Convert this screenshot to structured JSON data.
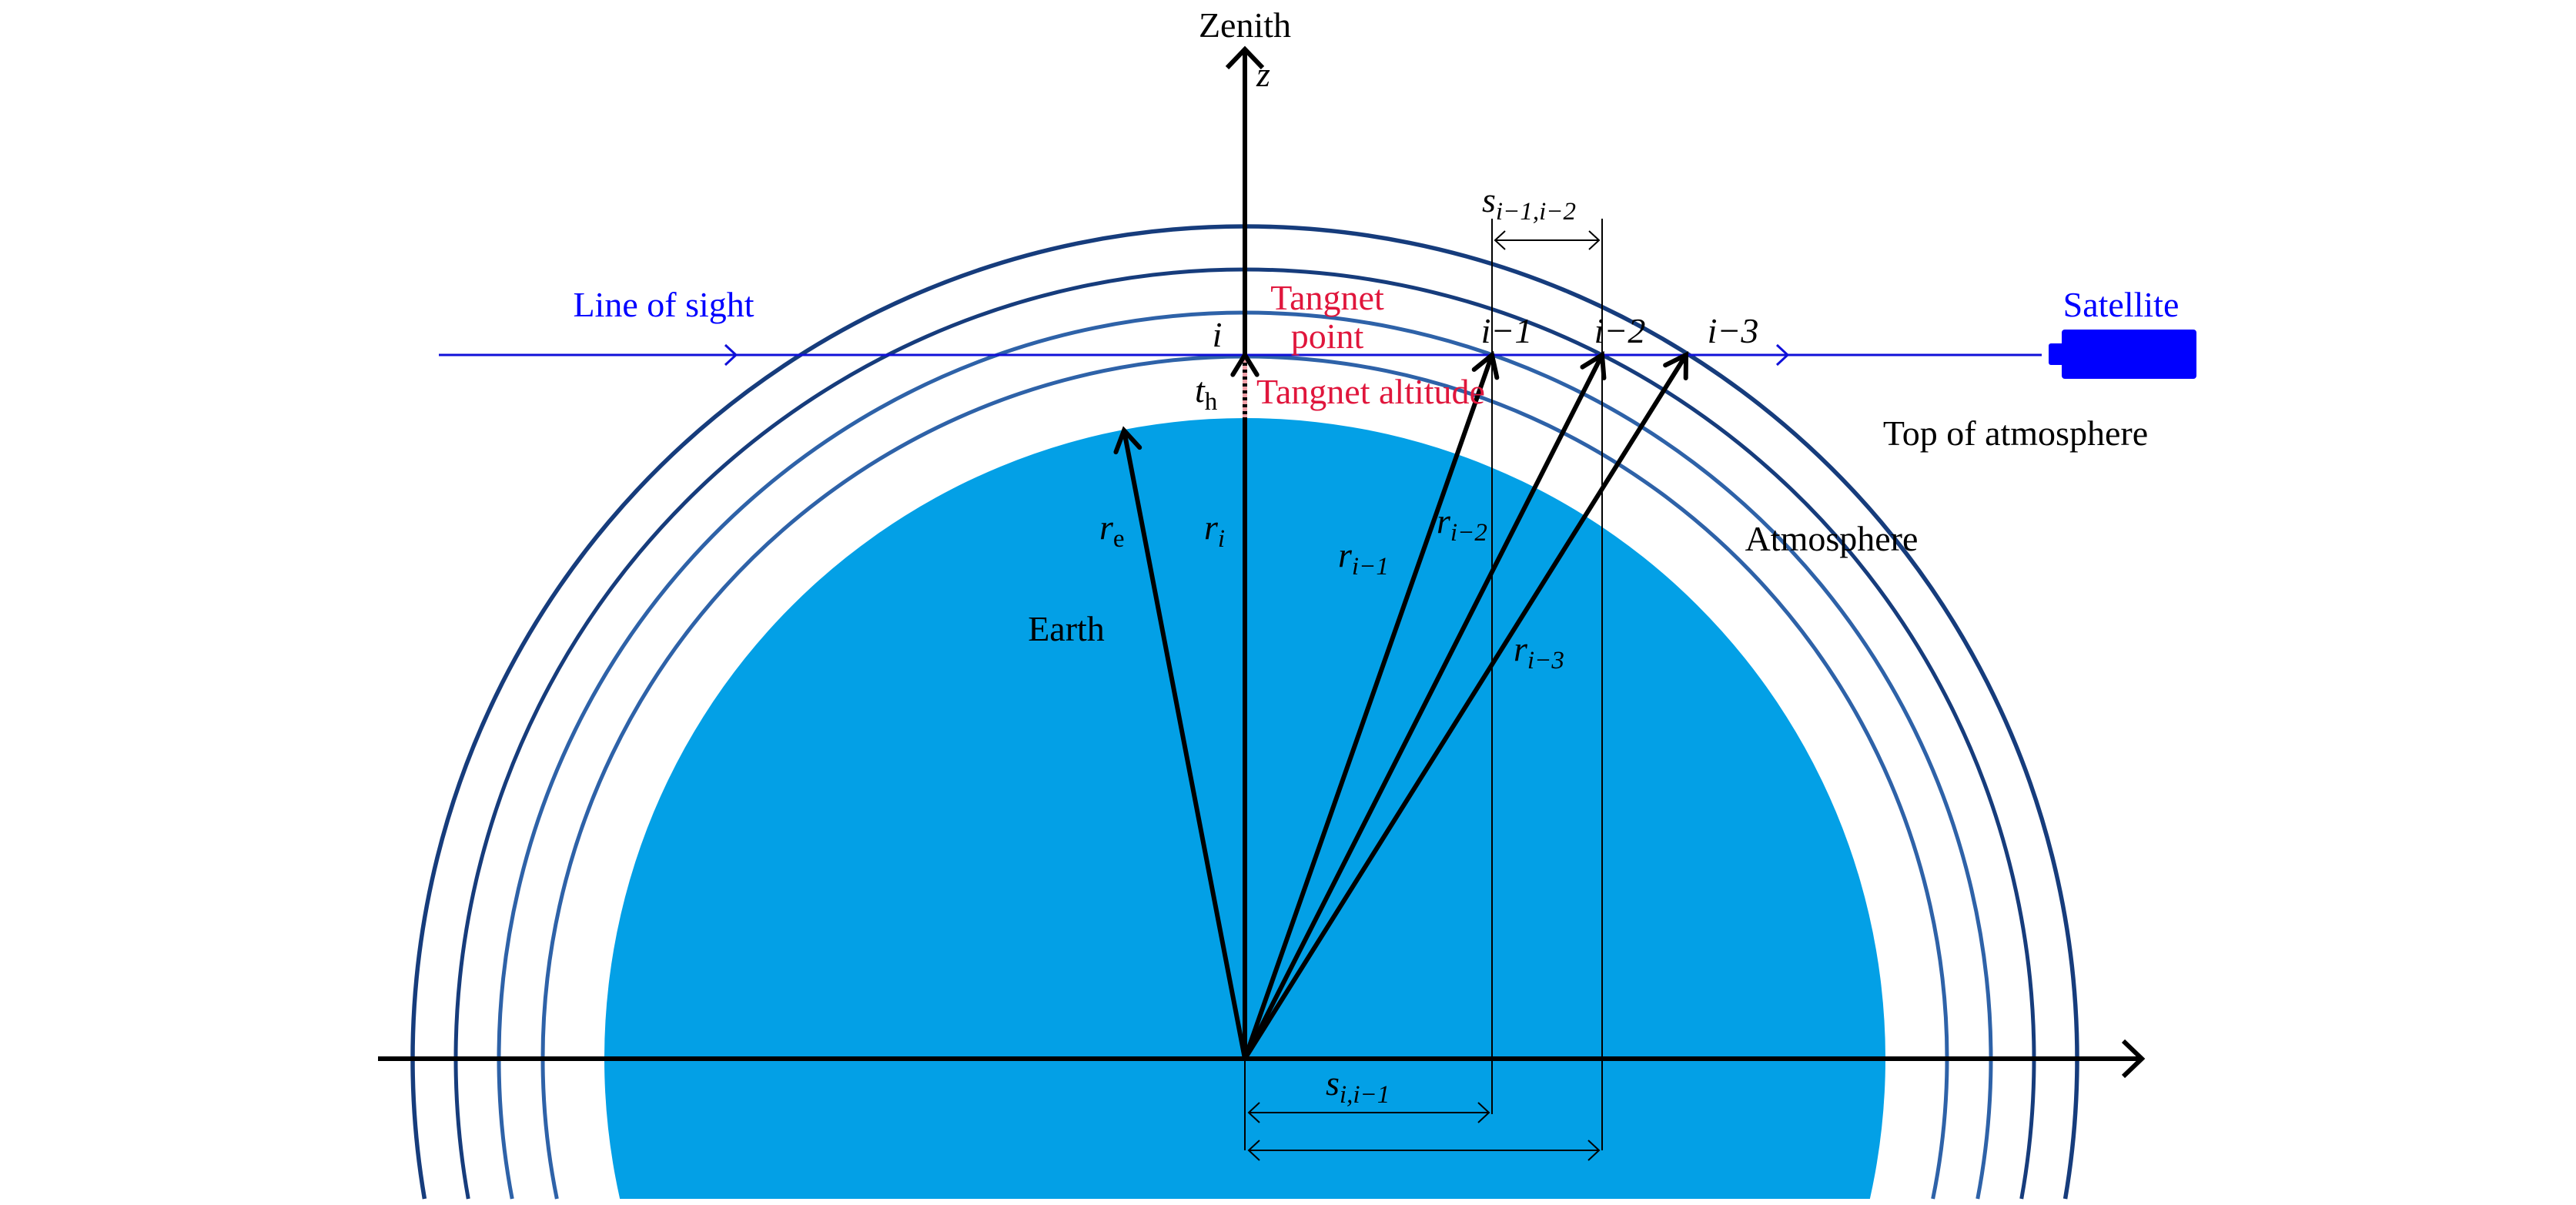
{
  "colors": {
    "earth": "#03a0e6",
    "shell_outer": "#163c7c",
    "shell_inner": "#2e62a8",
    "line_of_sight": "#1010d8",
    "satellite": "#0000ff",
    "tangent_text": "#e0163c",
    "ink": "#000000"
  },
  "labels": {
    "zenith": "Zenith",
    "z_axis": "z",
    "line_of_sight": "Line of sight",
    "satellite": "Satellite",
    "tangent_point_1": "Tangnet",
    "tangent_point_2": "point",
    "tangent_altitude": "Tangnet altitude",
    "top_of_atmosphere": "Top of atmosphere",
    "atmosphere": "Atmosphere",
    "earth": "Earth"
  },
  "points": {
    "i": "i",
    "i1": "i−1",
    "i2": "i−2",
    "i3": "i−3"
  },
  "symbols": {
    "t": "t",
    "t_sub": "h",
    "r": "r",
    "re_sub": "e",
    "ri_sub": "i",
    "ri1_sub": "i−1",
    "ri2_sub": "i−2",
    "ri3_sub": "i−3",
    "s": "s",
    "s_top_sub": "i−1,i−2",
    "s_bottom_sub": "i,i−1"
  }
}
